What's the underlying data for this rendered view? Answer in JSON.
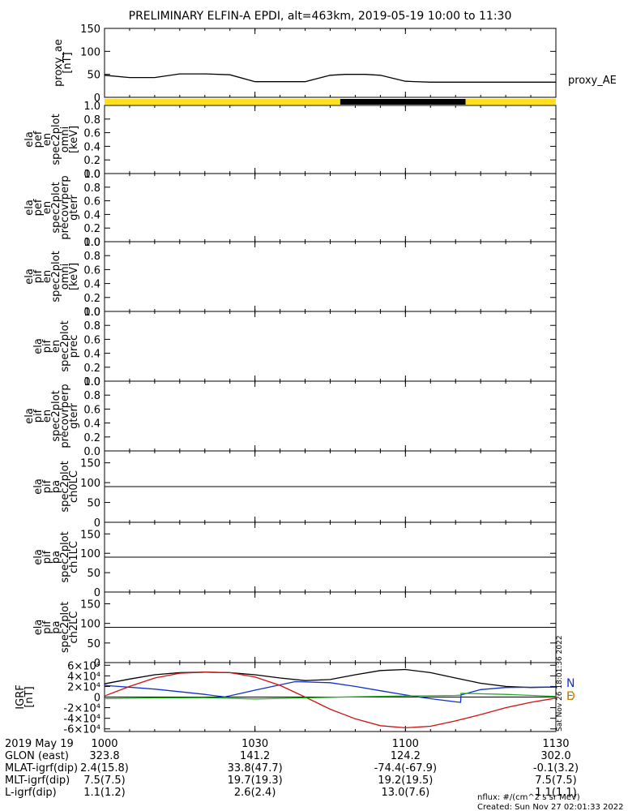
{
  "title": "PRELIMINARY ELFIN-A EPDI, alt=463km, 2019-05-19 10:00 to 11:30",
  "right_side_label": "proxy_AE",
  "vertical_stamp": "Sat Nov 26 18:01:36 2022",
  "time_axis": {
    "date_label": "2019 May 19",
    "ticks": [
      "1000",
      "1030",
      "1100",
      "1130"
    ],
    "tick_minutes": [
      0,
      30,
      60,
      90
    ],
    "range_minutes": [
      0,
      90
    ]
  },
  "orbit_rows": [
    {
      "label": "GLON (east)",
      "values": [
        "323.8",
        "141.2",
        "124.2",
        "302.0"
      ]
    },
    {
      "label": "MLAT-igrf(dip)",
      "values": [
        "2.4(15.8)",
        "33.8(47.7)",
        "-74.4(-67.9)",
        "-0.1(3.2)"
      ]
    },
    {
      "label": "MLT-igrf(dip)",
      "values": [
        "7.5(7.5)",
        "19.7(19.3)",
        "19.2(19.5)",
        "7.5(7.5)"
      ]
    },
    {
      "label": "L-igrf(dip)",
      "values": [
        "1.1(1.2)",
        "2.6(2.4)",
        "13.0(7.6)",
        "1.1(1.1)"
      ]
    }
  ],
  "footer": {
    "units": "nflux: #/(cm^2 s sr MeV)",
    "created": "Created: Sun Nov 27 02:01:33 2022"
  },
  "colors": {
    "yellow_bar": "#ffe020",
    "black_bar": "#000000",
    "N": "#1030d0",
    "E": "#d01010",
    "D": "#e07800",
    "b_x": "#000000",
    "b_y": "#1030d0",
    "b_z": "#d01010",
    "b_total": "#20b020"
  },
  "chart_data": [
    {
      "type": "line",
      "panel": "proxy_ae",
      "ylabel": [
        "proxy_ae",
        "[nT]"
      ],
      "ylim": [
        0,
        150
      ],
      "yticks": [
        "0",
        "50",
        "100",
        "150"
      ],
      "series": [
        {
          "name": "proxy_AE",
          "x": [
            0,
            5,
            10,
            15,
            20,
            25,
            30,
            33,
            40,
            45,
            48,
            52,
            55,
            60,
            65,
            70,
            80,
            90
          ],
          "values": [
            48,
            43,
            43,
            51,
            51,
            49,
            34,
            34,
            34,
            48,
            50,
            50,
            48,
            35,
            33,
            33,
            33,
            33
          ]
        }
      ]
    },
    {
      "type": "bar",
      "panel": "science_zone_bar",
      "segments": [
        {
          "from": 0,
          "to": 47,
          "state": "yellow"
        },
        {
          "from": 47,
          "to": 72,
          "state": "black"
        },
        {
          "from": 72,
          "to": 90,
          "state": "yellow"
        }
      ]
    },
    {
      "type": "heatmap",
      "panel": "ela_pef_omni",
      "ylabel": [
        "ela",
        "pef",
        "en",
        "spec2plot",
        "omni",
        "[keV]"
      ],
      "ylim": [
        0,
        1
      ],
      "yticks": [
        "0.0",
        "0.2",
        "0.4",
        "0.6",
        "0.8",
        "1.0"
      ]
    },
    {
      "type": "heatmap",
      "panel": "ela_pef_precovrperp",
      "ylabel": [
        "ela",
        "pef",
        "en",
        "spec2plot",
        "precovrperp",
        "gterr"
      ],
      "ylim": [
        0,
        1
      ],
      "yticks": [
        "0.0",
        "0.2",
        "0.4",
        "0.6",
        "0.8",
        "1.0"
      ]
    },
    {
      "type": "heatmap",
      "panel": "ela_pif_omni",
      "ylabel": [
        "ela",
        "pif",
        "en",
        "spec2plot",
        "omni",
        "[keV]"
      ],
      "ylim": [
        0,
        1
      ],
      "yticks": [
        "0.0",
        "0.2",
        "0.4",
        "0.6",
        "0.8",
        "1.0"
      ]
    },
    {
      "type": "heatmap",
      "panel": "ela_pif_prec",
      "ylabel": [
        "ela",
        "pif",
        "en",
        "spec2plot",
        "prec"
      ],
      "ylim": [
        0,
        1
      ],
      "yticks": [
        "0.0",
        "0.2",
        "0.4",
        "0.6",
        "0.8",
        "1.0"
      ]
    },
    {
      "type": "heatmap",
      "panel": "ela_pif_precovrperp",
      "ylabel": [
        "ela",
        "pif",
        "en",
        "spec2plot",
        "precovrperp",
        "gterr"
      ],
      "ylim": [
        0,
        1
      ],
      "yticks": [
        "0.0",
        "0.2",
        "0.4",
        "0.6",
        "0.8",
        "1.0"
      ]
    },
    {
      "type": "heatmap",
      "panel": "ela_pif_pa_ch0LC",
      "ylabel": [
        "ela",
        "pif",
        "pa",
        "spec2plot",
        "ch0LC"
      ],
      "ylim": [
        0,
        180
      ],
      "yticks": [
        "0",
        "50",
        "100",
        "150"
      ],
      "hline": 90
    },
    {
      "type": "heatmap",
      "panel": "ela_pif_pa_ch1LC",
      "ylabel": [
        "ela",
        "pif",
        "pa",
        "spec2plot",
        "ch1LC"
      ],
      "ylim": [
        0,
        180
      ],
      "yticks": [
        "0",
        "50",
        "100",
        "150"
      ],
      "hline": 90
    },
    {
      "type": "heatmap",
      "panel": "ela_pif_pa_ch2LC",
      "ylabel": [
        "ela",
        "pif",
        "pa",
        "spec2plot",
        "ch2LC"
      ],
      "ylim": [
        0,
        180
      ],
      "yticks": [
        "0",
        "50",
        "100",
        "150"
      ],
      "hline": 90
    },
    {
      "type": "line",
      "panel": "igrf",
      "ylabel": [
        "IGRF",
        "[nT]"
      ],
      "ylim": [
        -65000,
        65000
      ],
      "yticks": [
        "-6×10⁴",
        "-4×10⁴",
        "-2×10⁴",
        "0",
        "2×10⁴",
        "4×10⁴",
        "6×10⁴"
      ],
      "ytick_values": [
        -60000,
        -40000,
        -20000,
        0,
        20000,
        40000,
        60000
      ],
      "legend": [
        "N",
        "E",
        "D"
      ],
      "series": [
        {
          "color_key": "b_x",
          "x": [
            0,
            5,
            10,
            15,
            20,
            25,
            30,
            35,
            40,
            45,
            50,
            55,
            60,
            65,
            70,
            75,
            80,
            85,
            90
          ],
          "values": [
            25000,
            34000,
            42000,
            46000,
            47000,
            46000,
            42000,
            36000,
            31000,
            33000,
            42000,
            50000,
            52000,
            46000,
            36000,
            26000,
            20000,
            18000,
            19000
          ]
        },
        {
          "color_key": "b_y",
          "x": [
            0,
            10,
            20,
            24,
            30,
            38,
            45,
            50,
            55,
            60,
            65,
            70,
            71,
            71.1,
            75,
            80,
            90
          ],
          "values": [
            22000,
            15000,
            5000,
            200,
            13000,
            29000,
            27000,
            20000,
            12000,
            4000,
            -3000,
            -9000,
            -10000,
            4000,
            14000,
            18000,
            19000
          ]
        },
        {
          "color_key": "b_z",
          "x": [
            0,
            5,
            10,
            15,
            20,
            25,
            30,
            35,
            40,
            45,
            50,
            55,
            60,
            65,
            70,
            75,
            80,
            85,
            90
          ],
          "values": [
            2000,
            20000,
            36000,
            45000,
            47000,
            46000,
            38000,
            22000,
            0,
            -23000,
            -41000,
            -54000,
            -58000,
            -55000,
            -45000,
            -33000,
            -20000,
            -10000,
            -2000
          ]
        },
        {
          "color_key": "b_total",
          "x": [
            0,
            10,
            20,
            30,
            40,
            50,
            60,
            70,
            71,
            71.1,
            80,
            90
          ],
          "values": [
            -3000,
            -1500,
            -1000,
            -3500,
            -1500,
            500,
            2000,
            3000,
            3500,
            7000,
            5000,
            1000
          ]
        }
      ]
    }
  ]
}
